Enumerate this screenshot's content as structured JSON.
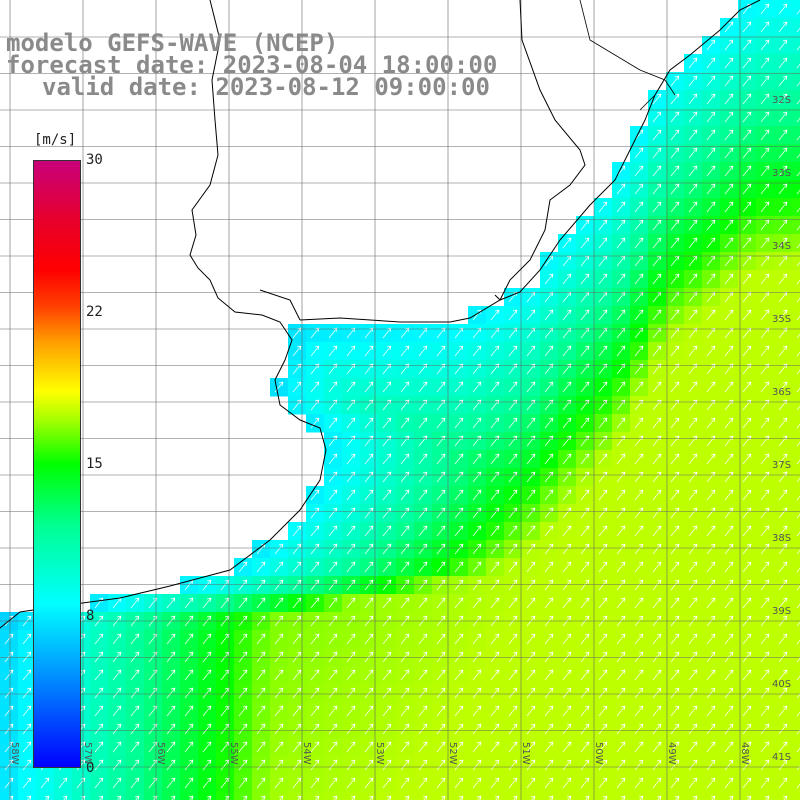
{
  "title": {
    "line1": "modelo GEFS-WAVE (NCEP)",
    "line2": "forecast date: 2023-08-04 18:00:00",
    "line3": "valid date: 2023-08-12 09:00:00"
  },
  "colorbar": {
    "units": "[m/s]",
    "ticks": [
      {
        "value": 30,
        "label": "30"
      },
      {
        "value": 22,
        "label": "22"
      },
      {
        "value": 15,
        "label": "15"
      },
      {
        "value": 8,
        "label": "8"
      },
      {
        "value": 0,
        "label": "0"
      }
    ],
    "range": [
      0,
      30
    ]
  },
  "grid": {
    "lat_labels": [
      "32S",
      "33S",
      "34S",
      "35S",
      "36S",
      "37S",
      "38S",
      "39S",
      "40S",
      "41S"
    ],
    "lon_labels": [
      "58W",
      "57W",
      "56W",
      "55W",
      "54W",
      "53W",
      "52W",
      "51W",
      "50W",
      "49W",
      "48W"
    ]
  },
  "colors": {
    "land": "#ffffff",
    "grid_line": "#666666",
    "coast": "#000000",
    "arrow": "#ffffff"
  }
}
